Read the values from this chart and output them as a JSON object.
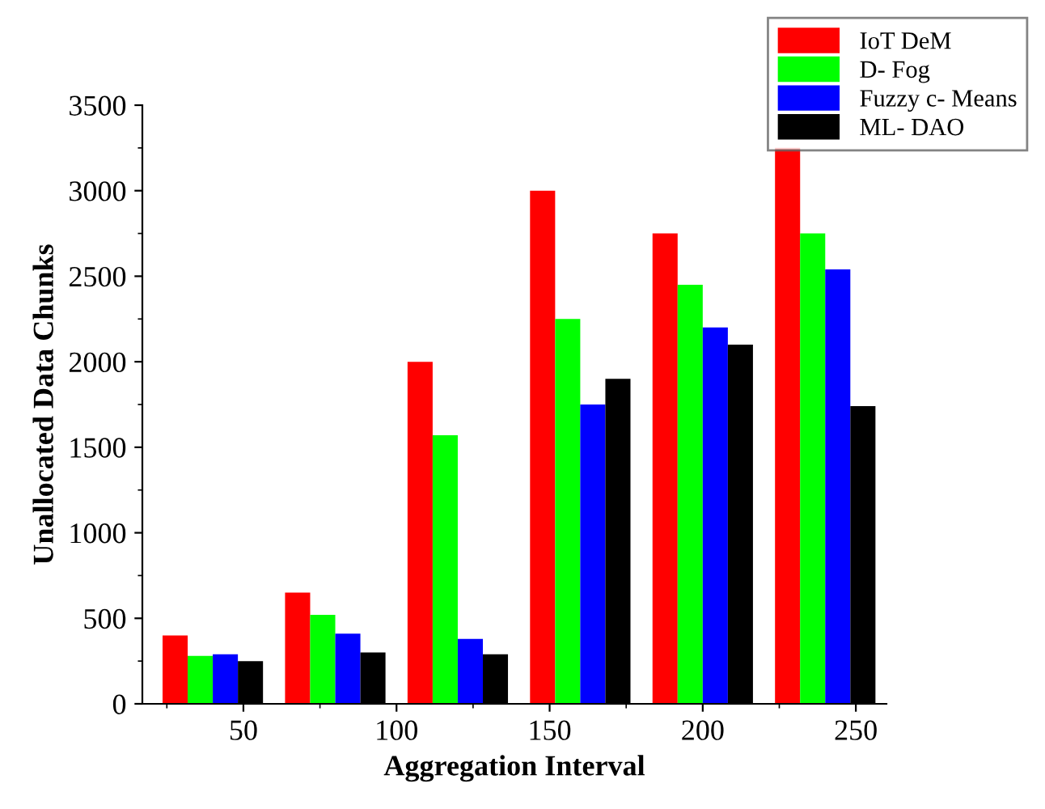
{
  "chart_data": {
    "type": "bar",
    "xlabel": "Aggregation Interval",
    "ylabel": "Unallocated Data Chunks",
    "x": [
      40,
      80,
      120,
      160,
      200,
      240
    ],
    "series": [
      {
        "name": "IoT DeM",
        "color": "#ff0000",
        "values": [
          400,
          650,
          2000,
          3000,
          2750,
          3250
        ]
      },
      {
        "name": "D- Fog",
        "color": "#00ff00",
        "values": [
          280,
          520,
          1570,
          2250,
          2450,
          2750
        ]
      },
      {
        "name": "Fuzzy c- Means",
        "color": "#0000ff",
        "values": [
          290,
          410,
          380,
          1750,
          2200,
          2540
        ]
      },
      {
        "name": "ML- DAO",
        "color": "#000000",
        "values": [
          250,
          300,
          290,
          1900,
          2100,
          1740
        ]
      }
    ],
    "xlim": [
      17,
      260
    ],
    "xticks": [
      50,
      100,
      150,
      200,
      250
    ],
    "ylim": [
      0,
      3500
    ],
    "yticks": [
      0,
      500,
      1000,
      1500,
      2000,
      2500,
      3000,
      3500
    ],
    "grid": false,
    "legend": "top right"
  }
}
